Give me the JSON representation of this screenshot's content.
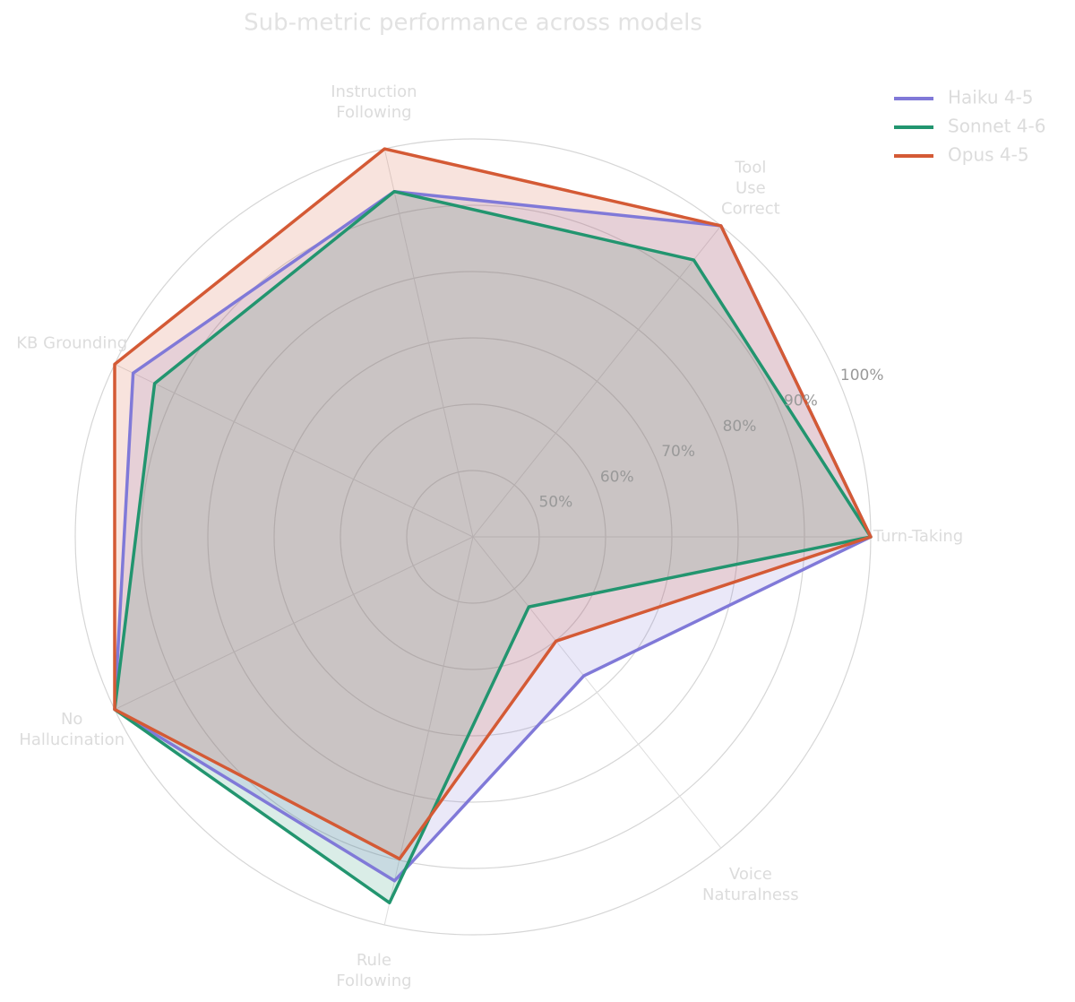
{
  "chart_data": {
    "type": "radar",
    "title": "Sub-metric performance across models",
    "categories": [
      "Turn-Taking",
      "Tool\nUse\nCorrect",
      "Instruction\nFollowing",
      "KB Grounding",
      "No\nHallucination",
      "Rule\nFollowing",
      "Voice\nNaturalness"
    ],
    "series": [
      {
        "name": "Haiku 4-5",
        "color": "#8079d8",
        "values": [
          100,
          100,
          93.4,
          96.9,
          100,
          93.2,
          66.8
        ]
      },
      {
        "name": "Sonnet 4-6",
        "color": "#22956f",
        "values": [
          100,
          93.4,
          93.4,
          93.3,
          100,
          96.6,
          53.5
        ]
      },
      {
        "name": "Opus 4-5",
        "color": "#d45a35",
        "values": [
          100,
          100,
          100,
          100,
          100,
          89.8,
          60.1
        ]
      }
    ],
    "ylim": [
      40,
      100
    ],
    "yticks": [
      {
        "value": 50,
        "label": "50%"
      },
      {
        "value": 60,
        "label": "60%"
      },
      {
        "value": 70,
        "label": "70%"
      },
      {
        "value": 80,
        "label": "80%"
      },
      {
        "value": 90,
        "label": "90%"
      },
      {
        "value": 100,
        "label": "100%"
      }
    ],
    "grid": true,
    "legend": "upper right"
  }
}
